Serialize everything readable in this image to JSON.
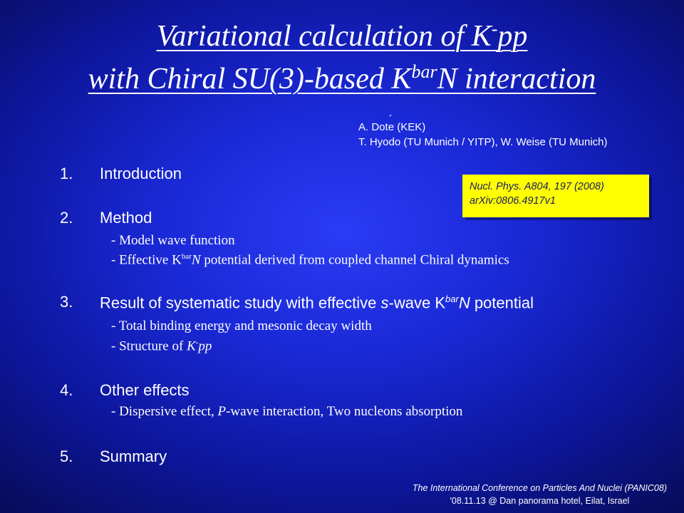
{
  "title": {
    "line1": {
      "pre": "Variational calculation of K",
      "sup": "-",
      "post": "pp"
    },
    "line2": {
      "pre": "with Chiral SU(3)-based K",
      "sup": "bar",
      "post": "N interaction"
    }
  },
  "authors": {
    "line1": {
      "a": "A. Dot",
      "b": "e",
      "c": " (KEK)"
    },
    "line2": "T. Hyodo (TU Munich / YITP), W. Weise (TU Munich)"
  },
  "reference": {
    "journal": "Nucl. Phys. A804, 197 (2008)",
    "arxiv": "arXiv:0806.4917v1"
  },
  "outline": {
    "s1": {
      "num": "1.",
      "text": "Introduction"
    },
    "s2": {
      "num": "2.",
      "text": "Method",
      "sub1": "-  Model wave function",
      "sub2": {
        "pre": "-  Effective K",
        "sup": "bar",
        "mid": "N",
        "post": " potential derived from  coupled channel Chiral dynamics"
      }
    },
    "s3": {
      "num": "3.",
      "text": {
        "a": "Result of systematic study with effective ",
        "b": "s",
        "c": "-wave K",
        "sup": "bar",
        "d": "N",
        "e": " potential"
      },
      "sub1": "-  Total binding energy and mesonic decay width",
      "sub2": {
        "pre": "-  Structure of ",
        "k": "K",
        "sup": "-",
        "post": "pp"
      }
    },
    "s4": {
      "num": "4.",
      "text": "Other effects",
      "sub1": {
        "pre": "-  Dispersive effect, ",
        "p": "P",
        "post": "-wave interaction, Two nucleons absorption"
      }
    },
    "s5": {
      "num": "5.",
      "text": "Summary"
    }
  },
  "footer": {
    "line1": "The International Conference on Particles And Nuclei (PANIC08)",
    "line2": "'08.11.13 @ Dan panorama hotel, Eilat, Israel"
  },
  "colors": {
    "background": "#1a29d6",
    "reference_box": "#ffff00",
    "text": "#ffffff"
  }
}
